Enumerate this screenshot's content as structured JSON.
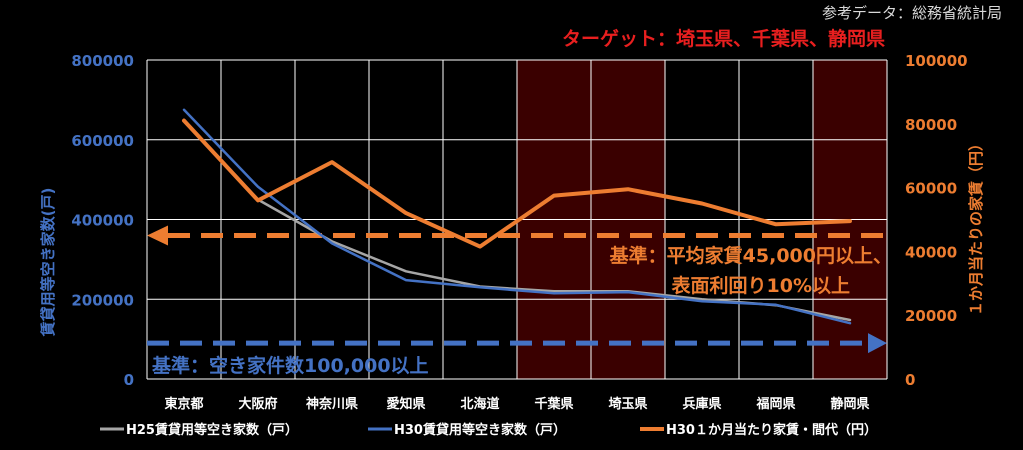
{
  "source_note": "参考データ：総務省統計局",
  "target_note": "ターゲット：埼玉県、千葉県、静岡県",
  "colors": {
    "background": "#000000",
    "h25_line": "#a6a6a6",
    "h30_line": "#4472c4",
    "rent_line": "#ed7d31",
    "target_bg": "#3a0000",
    "left_axis": "#4472c4",
    "right_axis": "#ed7d31",
    "target_text": "#e81f1f"
  },
  "annotations": {
    "rent_rule_line1": "基準：平均家賃45,000円以上、",
    "rent_rule_line2": "表面利回り10%以上",
    "vacancy_rule": "基準：空き家件数100,000以上"
  },
  "chart_data": {
    "type": "line",
    "categories": [
      "東京都",
      "大阪府",
      "神奈川県",
      "愛知県",
      "北海道",
      "千葉県",
      "埼玉県",
      "兵庫県",
      "福岡県",
      "静岡県"
    ],
    "ylabel": "賃貸用等空き家数(戸)",
    "y2label": "１か月当たりの家賃（円）",
    "ylim": [
      0,
      800000
    ],
    "y2lim": [
      0,
      100000
    ],
    "yticks": [
      "0",
      "200000",
      "400000",
      "600000",
      "800000"
    ],
    "y2ticks": [
      "0",
      "20000",
      "40000",
      "60000",
      "80000",
      "100000"
    ],
    "grid": true,
    "legend_position": "bottom",
    "highlighted_categories": [
      "千葉県",
      "埼玉県",
      "静岡県"
    ],
    "series": [
      {
        "name": "H25賃貸用等空き家数（戸）",
        "axis": "left",
        "values": [
          650000,
          450000,
          345000,
          270000,
          232000,
          220000,
          220000,
          200000,
          185000,
          148000
        ]
      },
      {
        "name": "H30賃貸用等空き家数（戸）",
        "axis": "left",
        "values": [
          675000,
          482000,
          340000,
          248000,
          230000,
          215000,
          218000,
          195000,
          186000,
          140000
        ]
      },
      {
        "name": "H30１か月当たり家賃・間代（円）",
        "axis": "right",
        "values": [
          81000,
          56000,
          68000,
          52000,
          41500,
          57500,
          59500,
          55000,
          48500,
          49500
        ]
      }
    ],
    "reference_lines": [
      {
        "axis": "right",
        "value": 45000
      },
      {
        "axis": "left",
        "value": 90000
      }
    ]
  }
}
